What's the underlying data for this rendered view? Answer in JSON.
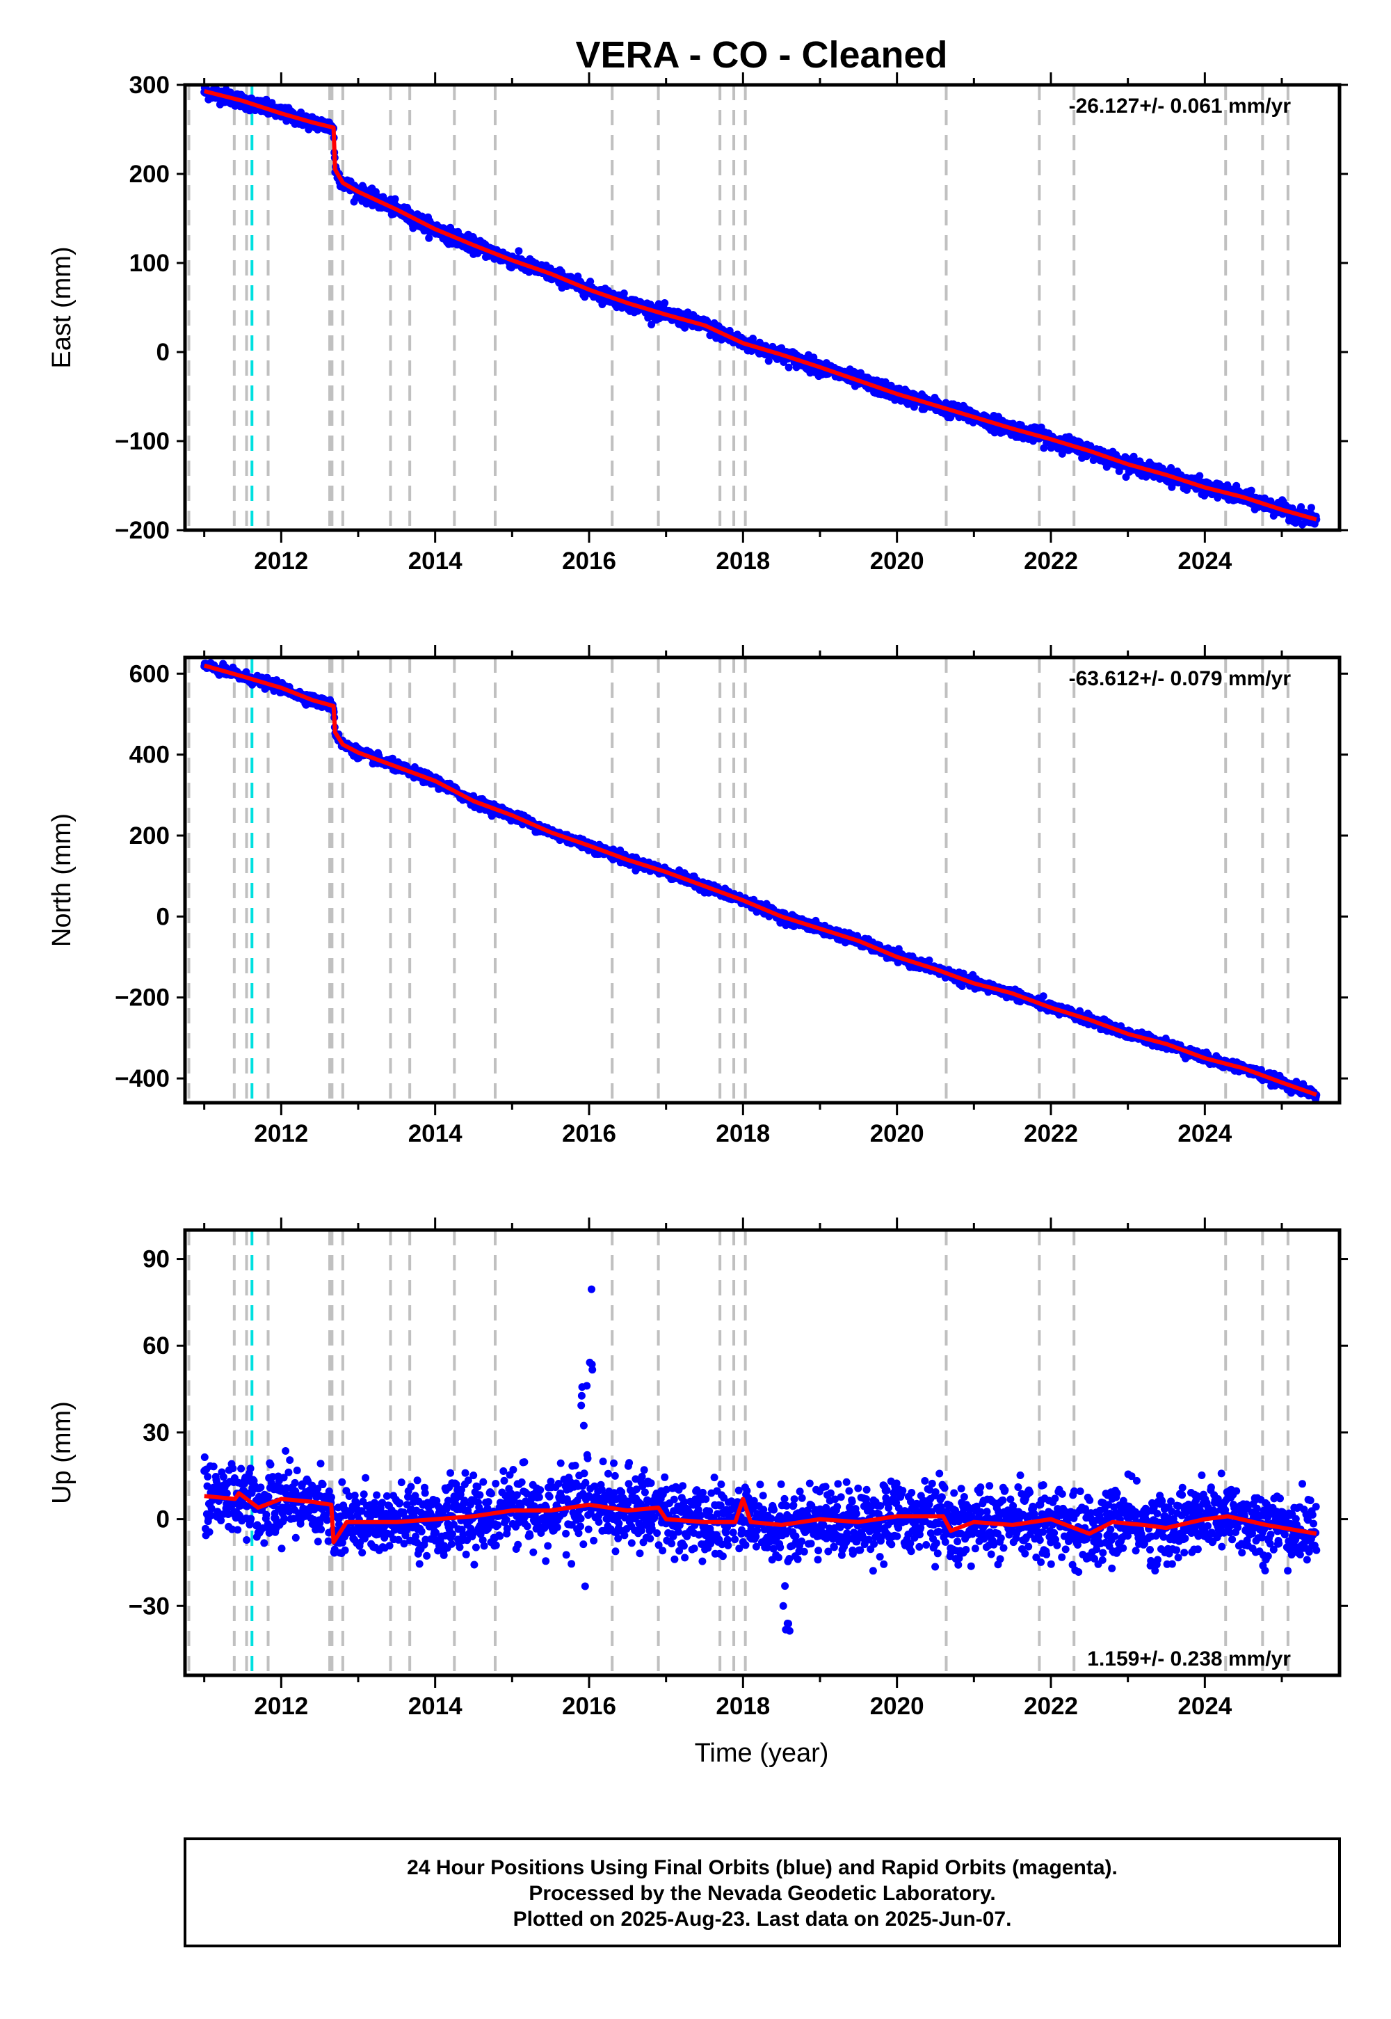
{
  "title": "VERA  - CO - Cleaned",
  "colors": {
    "data_points": "#0000ff",
    "model_line": "#ff0000",
    "event_lines": "#c0c0c0",
    "special_line": "#00e0e0",
    "frame": "#000000"
  },
  "chart_data": [
    {
      "type": "scatter",
      "panel": "east",
      "ylabel": "East (mm)",
      "ylim": [
        -200,
        300
      ],
      "yticks": [
        300,
        200,
        100,
        0,
        -100,
        -200
      ],
      "xlim": [
        2010.75,
        2025.75
      ],
      "xticks": [
        2012,
        2014,
        2016,
        2018,
        2020,
        2022,
        2024
      ],
      "rate_label": "-26.127+/- 0.061 mm/yr",
      "rate_position": "top-right",
      "model_points": [
        [
          2011.0,
          293
        ],
        [
          2011.5,
          282
        ],
        [
          2012.0,
          268
        ],
        [
          2012.4,
          258
        ],
        [
          2012.68,
          252
        ],
        [
          2012.7,
          205
        ],
        [
          2012.8,
          190
        ],
        [
          2013.0,
          180
        ],
        [
          2013.5,
          160
        ],
        [
          2014.0,
          138
        ],
        [
          2014.5,
          120
        ],
        [
          2015.0,
          103
        ],
        [
          2015.5,
          88
        ],
        [
          2016.0,
          70
        ],
        [
          2016.5,
          55
        ],
        [
          2017.0,
          42
        ],
        [
          2017.5,
          30
        ],
        [
          2018.0,
          10
        ],
        [
          2018.5,
          -3
        ],
        [
          2019.0,
          -17
        ],
        [
          2019.5,
          -32
        ],
        [
          2020.0,
          -47
        ],
        [
          2020.5,
          -60
        ],
        [
          2021.0,
          -73
        ],
        [
          2021.5,
          -86
        ],
        [
          2022.0,
          -98
        ],
        [
          2022.5,
          -111
        ],
        [
          2023.0,
          -126
        ],
        [
          2023.5,
          -138
        ],
        [
          2024.0,
          -152
        ],
        [
          2024.5,
          -163
        ],
        [
          2025.0,
          -177
        ],
        [
          2025.45,
          -188
        ]
      ],
      "noise_mm": 4
    },
    {
      "type": "scatter",
      "panel": "north",
      "ylabel": "North (mm)",
      "ylim": [
        -460,
        640
      ],
      "yticks": [
        600,
        400,
        200,
        0,
        -200,
        -400
      ],
      "xlim": [
        2010.75,
        2025.75
      ],
      "xticks": [
        2012,
        2014,
        2016,
        2018,
        2020,
        2022,
        2024
      ],
      "rate_label": "-63.612+/- 0.079 mm/yr",
      "rate_position": "top-right",
      "model_points": [
        [
          2011.0,
          620
        ],
        [
          2011.5,
          593
        ],
        [
          2012.0,
          565
        ],
        [
          2012.4,
          535
        ],
        [
          2012.68,
          520
        ],
        [
          2012.7,
          455
        ],
        [
          2012.8,
          425
        ],
        [
          2013.0,
          405
        ],
        [
          2013.5,
          370
        ],
        [
          2014.0,
          335
        ],
        [
          2014.5,
          285
        ],
        [
          2015.0,
          250
        ],
        [
          2015.5,
          208
        ],
        [
          2016.0,
          175
        ],
        [
          2016.5,
          140
        ],
        [
          2017.0,
          110
        ],
        [
          2017.5,
          75
        ],
        [
          2018.0,
          40
        ],
        [
          2018.5,
          0
        ],
        [
          2019.0,
          -30
        ],
        [
          2019.5,
          -60
        ],
        [
          2020.0,
          -100
        ],
        [
          2020.5,
          -130
        ],
        [
          2021.0,
          -165
        ],
        [
          2021.5,
          -190
        ],
        [
          2022.0,
          -225
        ],
        [
          2022.5,
          -255
        ],
        [
          2023.0,
          -290
        ],
        [
          2023.5,
          -315
        ],
        [
          2024.0,
          -350
        ],
        [
          2024.5,
          -375
        ],
        [
          2025.0,
          -410
        ],
        [
          2025.45,
          -440
        ]
      ],
      "noise_mm": 6
    },
    {
      "type": "scatter",
      "panel": "up",
      "ylabel": "Up (mm)",
      "xlabel": "Time (year)",
      "ylim": [
        -54,
        100
      ],
      "yticks": [
        90,
        60,
        30,
        0,
        -30
      ],
      "xlim": [
        2010.75,
        2025.75
      ],
      "xticks": [
        2012,
        2014,
        2016,
        2018,
        2020,
        2022,
        2024
      ],
      "rate_label": "1.159+/- 0.238 mm/yr",
      "rate_position": "bottom-right",
      "model_points": [
        [
          2011.0,
          8
        ],
        [
          2011.4,
          7
        ],
        [
          2011.45,
          9
        ],
        [
          2011.7,
          4
        ],
        [
          2012.0,
          7
        ],
        [
          2012.4,
          6
        ],
        [
          2012.65,
          5
        ],
        [
          2012.68,
          -8
        ],
        [
          2012.85,
          -1
        ],
        [
          2013.5,
          -1
        ],
        [
          2014.0,
          0
        ],
        [
          2014.5,
          1
        ],
        [
          2015.0,
          3
        ],
        [
          2015.5,
          3
        ],
        [
          2016.0,
          5
        ],
        [
          2016.5,
          3
        ],
        [
          2016.9,
          4
        ],
        [
          2017.0,
          0
        ],
        [
          2017.5,
          -1
        ],
        [
          2017.9,
          -1
        ],
        [
          2018.0,
          7
        ],
        [
          2018.1,
          -1
        ],
        [
          2018.5,
          -2
        ],
        [
          2019.0,
          0
        ],
        [
          2019.5,
          -1
        ],
        [
          2020.0,
          1
        ],
        [
          2020.6,
          1
        ],
        [
          2020.7,
          -4
        ],
        [
          2021.0,
          -1
        ],
        [
          2021.5,
          -2
        ],
        [
          2022.0,
          0
        ],
        [
          2022.5,
          -5
        ],
        [
          2022.8,
          -1
        ],
        [
          2023.2,
          -2
        ],
        [
          2023.5,
          -3
        ],
        [
          2024.0,
          0
        ],
        [
          2024.3,
          1
        ],
        [
          2024.8,
          -2
        ],
        [
          2025.45,
          -5
        ]
      ],
      "noise_mm": 6
    }
  ],
  "event_years": [
    2010.8,
    2011.39,
    2011.55,
    2011.83,
    2012.63,
    2012.66,
    2012.8,
    2013.42,
    2013.67,
    2014.25,
    2014.78,
    2016.3,
    2016.9,
    2017.7,
    2017.88,
    2018.03,
    2020.64,
    2021.85,
    2022.3,
    2024.27,
    2024.75,
    2025.08
  ],
  "special_event_year": 2011.62,
  "footer": {
    "line1": "24 Hour Positions Using Final Orbits (blue) and Rapid Orbits (magenta).",
    "line2": "Processed by the Nevada Geodetic Laboratory.",
    "line3": "Plotted on 2025-Aug-23. Last data on 2025-Jun-07."
  }
}
